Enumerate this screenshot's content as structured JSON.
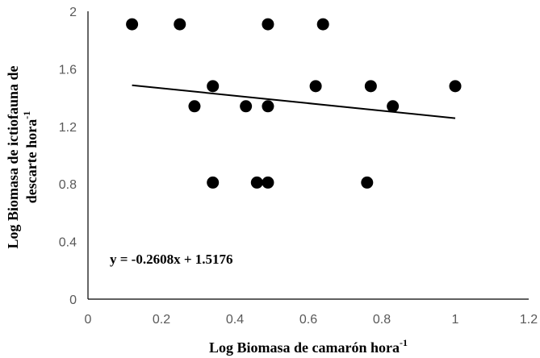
{
  "chart_data": {
    "type": "scatter",
    "xlabel": "Log Biomasa de camarón hora",
    "xlabel_sup": "-1",
    "ylabel_line1": "Log Biomasa de ictiofauna de",
    "ylabel_line2": "descarte hora",
    "ylabel_sup": "-1",
    "xlim": [
      0,
      1.2
    ],
    "ylim": [
      0,
      2
    ],
    "xticks": [
      "0",
      "0.2",
      "0.4",
      "0.6",
      "0.8",
      "1",
      "1.2"
    ],
    "yticks": [
      "0",
      "0.4",
      "0.8",
      "1.2",
      "1.6",
      "2"
    ],
    "grid": false,
    "legend": "none",
    "points": [
      {
        "x": 0.12,
        "y": 1.91
      },
      {
        "x": 0.25,
        "y": 1.91
      },
      {
        "x": 0.49,
        "y": 1.91
      },
      {
        "x": 0.64,
        "y": 1.91
      },
      {
        "x": 0.34,
        "y": 1.48
      },
      {
        "x": 0.62,
        "y": 1.48
      },
      {
        "x": 0.77,
        "y": 1.48
      },
      {
        "x": 1.0,
        "y": 1.48
      },
      {
        "x": 0.29,
        "y": 1.34
      },
      {
        "x": 0.43,
        "y": 1.34
      },
      {
        "x": 0.49,
        "y": 1.34
      },
      {
        "x": 0.83,
        "y": 1.34
      },
      {
        "x": 0.34,
        "y": 0.81
      },
      {
        "x": 0.46,
        "y": 0.81
      },
      {
        "x": 0.49,
        "y": 0.81
      },
      {
        "x": 0.76,
        "y": 0.81
      }
    ],
    "trendline": {
      "slope": -0.2608,
      "intercept": 1.5176,
      "x_range": [
        0.12,
        1.0
      ]
    },
    "equation": "y = -0.2608x + 1.5176",
    "marker_color": "#000000",
    "line_color": "#000000"
  }
}
